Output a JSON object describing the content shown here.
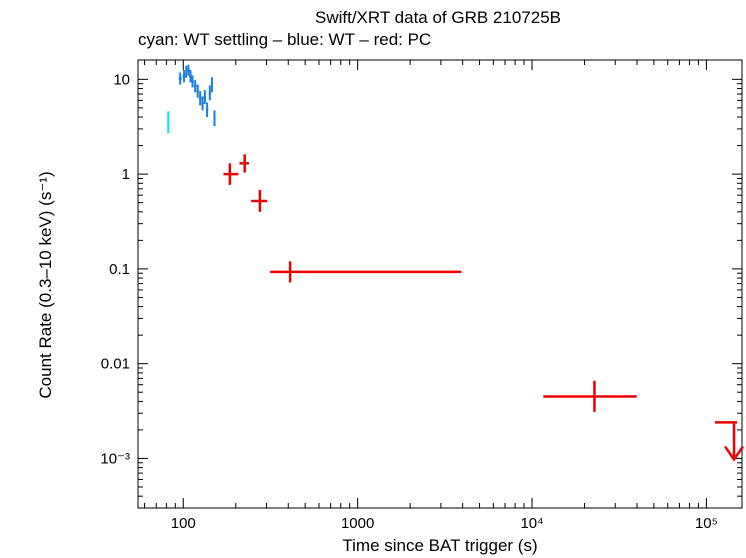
{
  "chart_data": {
    "type": "scatter",
    "title": "Swift/XRT data of GRB 210725B",
    "subtitle": "cyan: WT settling – blue: WT – red: PC",
    "xlabel": "Time since BAT trigger (s)",
    "ylabel": "Count Rate (0.3–10 keV) (s⁻¹)",
    "xscale": "log",
    "yscale": "log",
    "xlim": [
      55,
      160000
    ],
    "ylim": [
      0.0003,
      16
    ],
    "x_ticks": [
      {
        "value": 100,
        "label": "100"
      },
      {
        "value": 1000,
        "label": "1000"
      },
      {
        "value": 10000,
        "label": "10⁴"
      },
      {
        "value": 100000,
        "label": "10⁵"
      }
    ],
    "y_ticks": [
      {
        "value": 10,
        "label": "10"
      },
      {
        "value": 1,
        "label": "1"
      },
      {
        "value": 0.1,
        "label": "0.1"
      },
      {
        "value": 0.01,
        "label": "0.01"
      },
      {
        "value": 0.001,
        "label": "10⁻³"
      }
    ],
    "series": [
      {
        "color": "#00e5ff",
        "points": [
          {
            "x": 82,
            "xlo": 81,
            "xhi": 83,
            "y": 3.5,
            "ylo": 2.7,
            "yhi": 4.6
          }
        ]
      },
      {
        "color": "#1a7fe0",
        "points": [
          {
            "x": 96,
            "xlo": 94,
            "xhi": 98,
            "y": 10.2,
            "ylo": 8.8,
            "yhi": 11.8
          },
          {
            "x": 101,
            "xlo": 99,
            "xhi": 103,
            "y": 10.8,
            "ylo": 9.3,
            "yhi": 12.5
          },
          {
            "x": 104,
            "xlo": 103,
            "xhi": 105,
            "y": 12.0,
            "ylo": 10.4,
            "yhi": 13.8
          },
          {
            "x": 107,
            "xlo": 105,
            "xhi": 109,
            "y": 12.5,
            "ylo": 11.0,
            "yhi": 14.3
          },
          {
            "x": 110,
            "xlo": 108,
            "xhi": 112,
            "y": 10.8,
            "ylo": 9.3,
            "yhi": 12.5
          },
          {
            "x": 113,
            "xlo": 111,
            "xhi": 115,
            "y": 9.5,
            "ylo": 8.2,
            "yhi": 11.0
          },
          {
            "x": 117,
            "xlo": 115,
            "xhi": 119,
            "y": 8.5,
            "ylo": 7.3,
            "yhi": 9.8
          },
          {
            "x": 121,
            "xlo": 119,
            "xhi": 123,
            "y": 7.5,
            "ylo": 6.4,
            "yhi": 8.8
          },
          {
            "x": 125,
            "xlo": 123,
            "xhi": 127,
            "y": 6.3,
            "ylo": 5.3,
            "yhi": 7.5
          },
          {
            "x": 129,
            "xlo": 127,
            "xhi": 131,
            "y": 5.6,
            "ylo": 4.7,
            "yhi": 6.6
          },
          {
            "x": 133,
            "xlo": 131,
            "xhi": 135,
            "y": 6.5,
            "ylo": 5.5,
            "yhi": 7.7
          },
          {
            "x": 137,
            "xlo": 135,
            "xhi": 139,
            "y": 4.8,
            "ylo": 4.0,
            "yhi": 5.7
          },
          {
            "x": 142,
            "xlo": 140,
            "xhi": 144,
            "y": 7.2,
            "ylo": 6.0,
            "yhi": 8.6
          },
          {
            "x": 146,
            "xlo": 144,
            "xhi": 148,
            "y": 8.8,
            "ylo": 7.3,
            "yhi": 10.5
          },
          {
            "x": 151,
            "xlo": 149,
            "xhi": 153,
            "y": 3.9,
            "ylo": 3.2,
            "yhi": 4.7
          }
        ]
      },
      {
        "color": "#ee0000",
        "points": [
          {
            "x": 185,
            "xlo": 170,
            "xhi": 207,
            "y": 1.0,
            "ylo": 0.77,
            "yhi": 1.3
          },
          {
            "x": 225,
            "xlo": 210,
            "xhi": 238,
            "y": 1.3,
            "ylo": 1.04,
            "yhi": 1.62
          },
          {
            "x": 275,
            "xlo": 245,
            "xhi": 303,
            "y": 0.52,
            "ylo": 0.4,
            "yhi": 0.68
          },
          {
            "x": 410,
            "xlo": 315,
            "xhi": 3930,
            "y": 0.093,
            "ylo": 0.072,
            "yhi": 0.12
          },
          {
            "x": 22800,
            "xlo": 11600,
            "xhi": 39800,
            "y": 0.0045,
            "ylo": 0.0031,
            "yhi": 0.0066
          }
        ],
        "upper_limits": [
          {
            "x": 144000,
            "xlo": 112000,
            "xhi": 150000,
            "y": 0.0024
          }
        ]
      }
    ]
  }
}
